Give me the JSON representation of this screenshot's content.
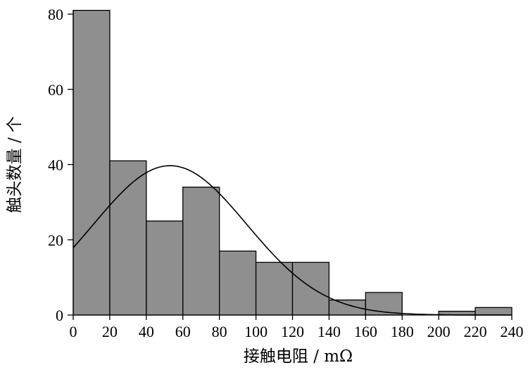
{
  "chart_data": {
    "type": "bar",
    "subtype": "histogram",
    "bin_edges": [
      0,
      20,
      40,
      60,
      80,
      100,
      120,
      140,
      160,
      180,
      200,
      220,
      240
    ],
    "values": [
      81,
      41,
      25,
      34,
      17,
      14,
      14,
      4,
      6,
      0,
      1,
      2
    ],
    "xlabel": "接触电阻 / mΩ",
    "ylabel": "触头数量 / 个",
    "xlim": [
      0,
      240
    ],
    "ylim": [
      0,
      80
    ],
    "x_ticks": [
      "0",
      "20",
      "40",
      "60",
      "80",
      "100",
      "120",
      "140",
      "160",
      "180",
      "200",
      "220",
      "240"
    ],
    "y_ticks": [
      "0",
      "20",
      "40",
      "60",
      "80"
    ],
    "fit_curve": {
      "type": "normal",
      "mean": 53,
      "peak": 39.7,
      "sigma": 42
    },
    "grid": false,
    "bar_color": "#8f8f8f"
  }
}
